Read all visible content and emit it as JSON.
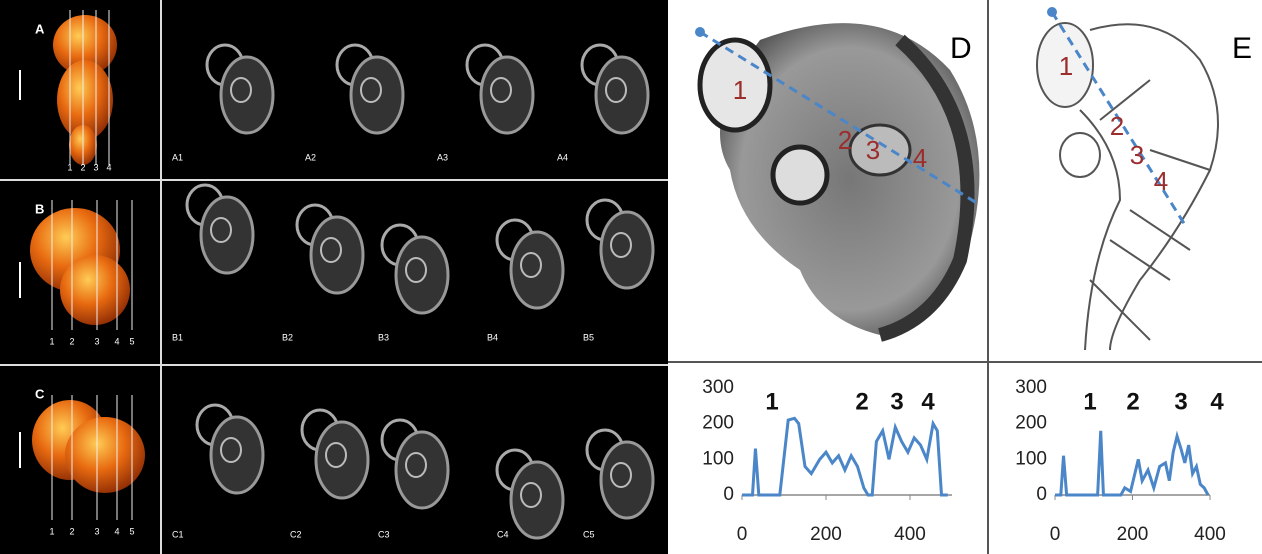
{
  "panels": {
    "A": {
      "label": "A",
      "scale_numbers": [
        "1",
        "2",
        "3",
        "4"
      ],
      "slices": [
        "A1",
        "A2",
        "A3",
        "A4"
      ]
    },
    "B": {
      "label": "B",
      "scale_numbers": [
        "1",
        "2",
        "3",
        "4",
        "5"
      ],
      "slices": [
        "B1",
        "B2",
        "B3",
        "B4",
        "B5"
      ]
    },
    "C": {
      "label": "C",
      "scale_numbers": [
        "1",
        "2",
        "3",
        "4",
        "5"
      ],
      "slices": [
        "C1",
        "C2",
        "C3",
        "C4",
        "C5"
      ]
    },
    "D": {
      "label": "D",
      "markers": [
        "1",
        "2",
        "3",
        "4"
      ]
    },
    "E": {
      "label": "E",
      "markers": [
        "1",
        "2",
        "3",
        "4"
      ]
    }
  },
  "chart_data": [
    {
      "type": "line",
      "annotations": [
        "1",
        "2",
        "3",
        "4"
      ],
      "color": "#4a86c8",
      "x": [
        0,
        25,
        32,
        40,
        90,
        110,
        125,
        135,
        150,
        165,
        185,
        200,
        215,
        230,
        245,
        260,
        275,
        290,
        300,
        310,
        320,
        335,
        350,
        365,
        380,
        395,
        410,
        425,
        440,
        455,
        465,
        475,
        490
      ],
      "values": [
        0,
        0,
        130,
        0,
        0,
        210,
        215,
        200,
        80,
        60,
        100,
        120,
        90,
        110,
        70,
        110,
        80,
        20,
        0,
        0,
        150,
        180,
        100,
        190,
        150,
        120,
        160,
        140,
        100,
        200,
        180,
        0,
        0
      ],
      "xlim": [
        0,
        500
      ],
      "xticks": [
        0,
        200,
        400
      ],
      "ylim": [
        0,
        300
      ],
      "yticks": [
        0,
        100,
        200,
        300
      ]
    },
    {
      "type": "line",
      "annotations": [
        "1",
        "2",
        "3",
        "4"
      ],
      "color": "#4a86c8",
      "x": [
        0,
        15,
        22,
        30,
        110,
        118,
        125,
        170,
        180,
        195,
        215,
        225,
        240,
        255,
        270,
        285,
        295,
        305,
        315,
        325,
        335,
        345,
        355,
        365,
        375,
        385,
        395
      ],
      "values": [
        0,
        0,
        110,
        0,
        0,
        180,
        0,
        0,
        20,
        10,
        100,
        40,
        70,
        20,
        80,
        90,
        40,
        120,
        165,
        130,
        90,
        140,
        60,
        80,
        30,
        20,
        0
      ],
      "xlim": [
        0,
        400
      ],
      "xticks": [
        0,
        200,
        400
      ],
      "ylim": [
        0,
        300
      ],
      "yticks": [
        0,
        100,
        200,
        300
      ]
    }
  ]
}
